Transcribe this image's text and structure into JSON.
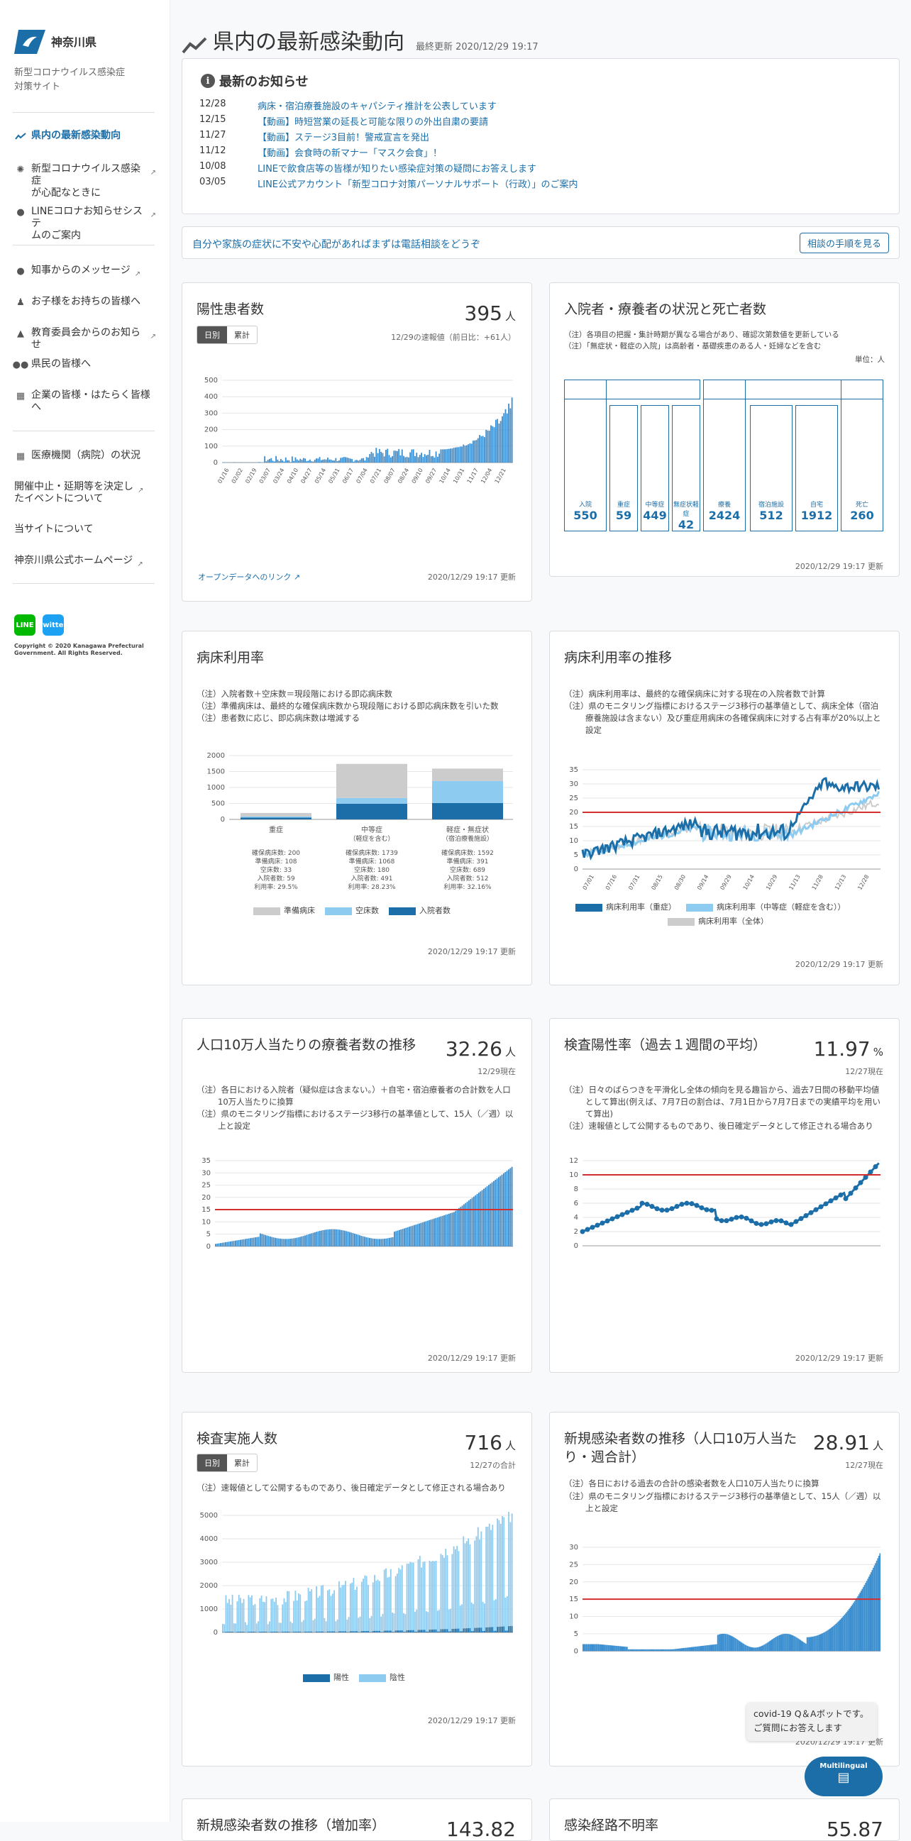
{
  "sidebar": {
    "logo_text": "神奈川県",
    "site_title_1": "新型コロナウイルス感染症",
    "site_title_2": "対策サイト",
    "items": [
      {
        "label": "県内の最新感染動向",
        "icon": "chart-line-icon"
      },
      {
        "label1": "新型コロナウイルス感染症",
        "label2": "が心配なときに",
        "icon": "virus-icon"
      },
      {
        "label1": "LINEコロナお知らせシステ",
        "label2": "ムのご案内",
        "icon": "chat-icon"
      },
      {
        "label": "知事からのメッセージ",
        "icon": "person-icon"
      },
      {
        "label": "お子様をお持ちの皆様へ",
        "icon": "parent-child-icon"
      },
      {
        "label": "教育委員会からのお知らせ",
        "icon": "graduation-cap-icon"
      },
      {
        "label": "県民の皆様へ",
        "icon": "people-icon"
      },
      {
        "label1": "企業の皆様・はたらく皆様",
        "label2": "へ",
        "icon": "building-icon"
      },
      {
        "label": "医療機関（病院）の状況",
        "icon": "hospital-icon"
      },
      {
        "label1": "開催中止・延期等を決定し",
        "label2": "たイベントについて"
      },
      {
        "label": "当サイトについて"
      },
      {
        "label": "神奈川県公式ホームページ"
      }
    ],
    "social": {
      "line": "LINE",
      "twitter": "twitter"
    },
    "copyright": "Copyright © 2020 Kanagawa Prefectural Government. All Rights Reserved."
  },
  "header": {
    "title": "県内の最新感染動向",
    "updated": "最終更新 2020/12/29 19:17"
  },
  "news": {
    "title": "最新のお知らせ",
    "items": [
      {
        "date": "12/28",
        "text": "病床・宿泊療養施設のキャパシティ推計を公表しています"
      },
      {
        "date": "12/15",
        "text": "【動画】時短営業の延長と可能な限りの外出自粛の要請"
      },
      {
        "date": "11/27",
        "text": "【動画】ステージ3目前！警戒宣言を発出"
      },
      {
        "date": "11/12",
        "text": "【動画】会食時の新マナー「マスク会食」！"
      },
      {
        "date": "10/08",
        "text": "LINEで飲食店等の皆様が知りたい感染症対策の疑問にお答えします"
      },
      {
        "date": "03/05",
        "text": "LINE公式アカウント「新型コロナ対策パーソナルサポート（行政）」のご案内"
      }
    ]
  },
  "consult": {
    "text": "自分や家族の症状に不安や心配があればまずは電話相談をどうぞ",
    "button": "相談の手順を見る"
  },
  "toggle": {
    "daily": "日別",
    "cumulative": "累計"
  },
  "common": {
    "updated": "2020/12/29 19:17 更新",
    "opendata": "オープンデータへのリンク"
  },
  "cards": {
    "positive": {
      "title": "陽性患者数",
      "value": "395",
      "unit": "人",
      "sub": "12/29の速報値（前日比：+61人）"
    },
    "status": {
      "title": "入院者・療養者の状況と死亡者数",
      "note1": "（注）各項目の把握・集計時期が異なる場合があり、確認次第数値を更新している",
      "note2": "（注）「無症状・軽症の入院」は高齢者・基礎疾患のある人・妊婦などを含む",
      "unit": "単位：人",
      "boxes": [
        {
          "label": "入院",
          "value": "550"
        },
        {
          "label": "重症",
          "value": "59"
        },
        {
          "label": "中等症",
          "value": "449"
        },
        {
          "label": "無症状軽症",
          "value": "42"
        },
        {
          "label": "療養",
          "value": "2424"
        },
        {
          "label": "宿泊施設",
          "value": "512"
        },
        {
          "label": "自宅",
          "value": "1912"
        },
        {
          "label": "死亡",
          "value": "260"
        }
      ]
    },
    "bed_usage": {
      "title": "病床利用率",
      "note1": "（注）入院者数＋空床数＝現段階における即応病床数",
      "note2": "（注）準備病床は、最終的な確保病床数から現段階における即応病床数を引いた数",
      "note3": "（注）患者数に応じ、即応病床数は増減する",
      "legend": [
        "準備病床",
        "空床数",
        "入院者数"
      ],
      "groups": [
        {
          "label": "重症",
          "label2": "",
          "lines": [
            "確保病床数: 200",
            "準備病床: 108",
            "空床数: 33",
            "入院者数: 59",
            "利用率: 29.5%"
          ]
        },
        {
          "label": "中等症",
          "label2": "（軽症を含む）",
          "lines": [
            "確保病床数: 1739",
            "準備病床: 1068",
            "空床数: 180",
            "入院者数: 491",
            "利用率: 28.23%"
          ]
        },
        {
          "label": "軽症・無症状",
          "label2": "（宿泊療養施設）",
          "lines": [
            "確保病床数: 1592",
            "準備病床: 391",
            "空床数: 689",
            "入院者数: 512",
            "利用率: 32.16%"
          ]
        }
      ]
    },
    "bed_trend": {
      "title": "病床利用率の推移",
      "note1": "（注）病床利用率は、最終的な確保病床に対する現在の入院者数で計算",
      "note2": "（注）県のモニタリング指標におけるステージ3移行の基準値として、病床全体（宿泊療養施設は含まない）及び重症用病床の各確保病床に対する占有率が20%以上と設定",
      "legend": [
        "病床利用率（重症）",
        "病床利用率（中等症（軽症を含む））",
        "病床利用率（全体）"
      ]
    },
    "per100k": {
      "title": "人口10万人当たりの療養者数の推移",
      "value": "32.26",
      "unit": "人",
      "sub": "12/29現在",
      "note1": "（注）各日における入院者（疑似症は含まない。）＋自宅・宿泊療養者の合計数を人口10万人当たりに換算",
      "note2": "（注）県のモニタリング指標におけるステージ3移行の基準値として、15人（／週）以上と設定"
    },
    "positivity": {
      "title": "検査陽性率（過去１週間の平均）",
      "value": "11.97",
      "unit": "%",
      "sub": "12/27現在",
      "note1": "（注）日々のばらつきを平滑化し全体の傾向を見る趣旨から、過去7日間の移動平均値として算出(例えば、7月7日の割合は、7月1日から7月7日までの実績平均を用いて算出)",
      "note2": "（注）速報値として公開するものであり、後日確定データとして修正される場合あり"
    },
    "tests": {
      "title": "検査実施人数",
      "value": "716",
      "unit": "人",
      "sub": "12/27の合計",
      "note1": "（注）速報値として公開するものであり、後日確定データとして修正される場合あり",
      "legend": [
        "陽性",
        "陰性"
      ]
    },
    "new_cases": {
      "title1": "新規感染者数の推移（人口10万人当た",
      "title2": "り・週合計）",
      "value": "28.91",
      "unit": "人",
      "sub": "12/27現在",
      "note1": "（注）各日における過去の合計の感染者数を人口10万人当たりに換算",
      "note2": "（注）県のモニタリング指標におけるステージ3移行の基準値として、15人（／週）以上と設定"
    },
    "bottom1": {
      "title": "新規感染者数の推移（増加率）",
      "value": "143.82"
    },
    "bottom2": {
      "title": "感染経路不明率",
      "value": "55.87"
    }
  },
  "chat": {
    "line1": "covid-19 Q＆Aボットです。",
    "line2": "ご質問にお答えします",
    "button": "Multilingual"
  },
  "colors": {
    "accent": "#1b6ea8",
    "bar": "#3b8ed0",
    "light": "#8ecbf0",
    "gray": "#cccccc",
    "red": "#d32f2f"
  },
  "chart_data": [
    {
      "type": "bar",
      "title": "陽性患者数",
      "ylim": [
        0,
        500
      ],
      "yticks": [
        0,
        100,
        200,
        300,
        400,
        500
      ],
      "xticks": [
        "01/16",
        "02/02",
        "02/19",
        "03/07",
        "03/24",
        "04/10",
        "04/27",
        "05/14",
        "05/31",
        "06/17",
        "07/04",
        "07/21",
        "08/07",
        "08/24",
        "09/10",
        "09/27",
        "10/14",
        "10/31",
        "11/17",
        "12/04",
        "12/21"
      ]
    },
    {
      "type": "bar",
      "title": "病床利用率",
      "categories": [
        "重症",
        "中等症",
        "軽症・無症状"
      ],
      "ylim": [
        0,
        2000
      ],
      "yticks": [
        0,
        500,
        1000,
        1500,
        2000
      ],
      "series": [
        {
          "name": "入院者数",
          "values": [
            59,
            491,
            512
          ]
        },
        {
          "name": "空床数",
          "values": [
            33,
            180,
            689
          ]
        },
        {
          "name": "準備病床",
          "values": [
            108,
            1068,
            391
          ]
        }
      ]
    },
    {
      "type": "line",
      "title": "病床利用率の推移",
      "ylim": [
        0,
        35
      ],
      "yticks": [
        0,
        5,
        10,
        15,
        20,
        25,
        30,
        35
      ],
      "threshold": 20,
      "xticks": [
        "07/01",
        "07/16",
        "07/31",
        "08/15",
        "08/30",
        "09/14",
        "09/29",
        "10/14",
        "10/29",
        "11/13",
        "11/28",
        "12/13",
        "12/28"
      ]
    },
    {
      "type": "bar",
      "title": "人口10万人当たりの療養者数の推移",
      "ylim": [
        0,
        35
      ],
      "yticks": [
        0,
        5,
        10,
        15,
        20,
        25,
        30,
        35
      ],
      "threshold": 15
    },
    {
      "type": "line",
      "title": "検査陽性率",
      "ylim": [
        0,
        12
      ],
      "yticks": [
        0,
        2,
        4,
        6,
        8,
        10,
        12
      ],
      "threshold": 10
    },
    {
      "type": "bar",
      "title": "検査実施人数",
      "ylim": [
        0,
        5000
      ],
      "yticks": [
        0,
        1000,
        2000,
        3000,
        4000,
        5000
      ]
    },
    {
      "type": "area",
      "title": "新規感染者数の推移",
      "ylim": [
        0,
        30
      ],
      "yticks": [
        0,
        5,
        10,
        15,
        20,
        25,
        30
      ],
      "threshold": 15
    }
  ]
}
